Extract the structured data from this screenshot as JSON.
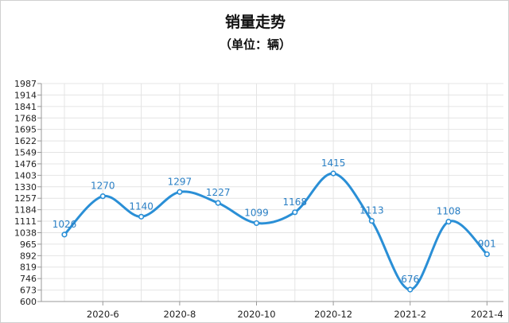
{
  "colors": {
    "line": "#2a8fd6",
    "label": "#2a7fc4",
    "grid": "#e4e4e4",
    "axis": "#999999"
  },
  "chart_data": {
    "type": "line",
    "title": "销量走势",
    "subtitle": "（单位：辆）",
    "xlabel": "",
    "ylabel": "",
    "grid": true,
    "legend": "none",
    "ylim": [
      600,
      1987
    ],
    "y_ticks": [
      "600",
      "673",
      "746",
      "819",
      "892",
      "965",
      "1038",
      "1111",
      "1184",
      "1257",
      "1330",
      "1403",
      "1476",
      "1549",
      "1622",
      "1695",
      "1768",
      "1841",
      "1914",
      "1987"
    ],
    "x_tick_labels": [
      "2020-6",
      "2020-8",
      "2020-10",
      "2020-12",
      "2021-2",
      "2021-4"
    ],
    "series": [
      {
        "x": [
          "2020-5",
          "2020-6",
          "2020-7",
          "2020-8",
          "2020-9",
          "2020-10",
          "2020-11",
          "2020-12",
          "2021-1",
          "2021-2",
          "2021-3",
          "2021-4"
        ],
        "values": [
          1026,
          1270,
          1140,
          1297,
          1227,
          1099,
          1168,
          1415,
          1113,
          676,
          1108,
          901
        ],
        "data_labels": [
          "1026",
          "1270",
          "1140",
          "1297",
          "1227",
          "1099",
          "1168",
          "1415",
          "1113",
          "676",
          "1108",
          "901"
        ]
      }
    ]
  }
}
